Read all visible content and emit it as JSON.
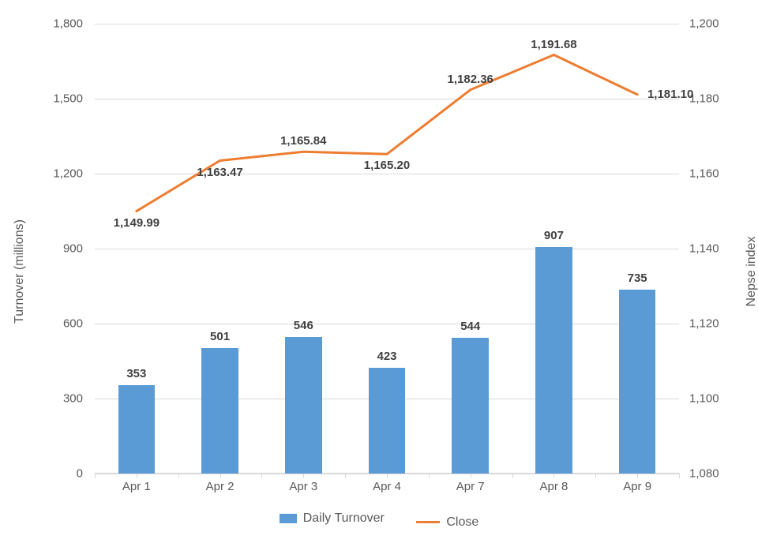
{
  "chart": {
    "type": "bar+line",
    "background_color": "#ffffff",
    "grid_color": "#d9d9d9",
    "text_color": "#595959",
    "label_fontsize": 15,
    "axis_title_fontsize": 16,
    "data_label_fontsize": 15,
    "font_family": "Segoe UI, Arial, sans-serif",
    "categories": [
      "Apr 1",
      "Apr 2",
      "Apr 3",
      "Apr 4",
      "Apr 7",
      "Apr 8",
      "Apr 9"
    ],
    "bar_series": {
      "name": "Daily Turnover",
      "color": "#5b9bd5",
      "values": [
        353,
        501,
        546,
        423,
        544,
        907,
        735
      ],
      "data_labels": [
        "353",
        "501",
        "546",
        "423",
        "544",
        "907",
        "735"
      ],
      "bar_width_ratio": 0.44,
      "data_label_color": "#404040",
      "data_label_weight": "700"
    },
    "line_series": {
      "name": "Close",
      "color": "#ed7d31",
      "line_width": 3,
      "marker_style": "none",
      "values": [
        1149.99,
        1163.47,
        1165.84,
        1165.2,
        1182.36,
        1191.68,
        1181.1
      ],
      "data_labels": [
        "1,149.99",
        "1,163.47",
        "1,165.84",
        "1,165.20",
        "1,182.36",
        "1,191.68",
        "1,181.10"
      ],
      "data_label_color": "#404040",
      "data_label_weight": "700",
      "label_positions": [
        "below",
        "below",
        "above",
        "below",
        "above",
        "above",
        "right"
      ]
    },
    "y_left": {
      "title": "Turnover (millions)",
      "lim": [
        0,
        1800
      ],
      "tick_step": 300,
      "tick_labels": [
        "0",
        "300",
        "600",
        "900",
        "1,200",
        "1,500",
        "1,800"
      ]
    },
    "y_right": {
      "title": "Nepse index",
      "lim": [
        1080,
        1200
      ],
      "tick_step": 20,
      "tick_labels": [
        "1,080",
        "1,100",
        "1,120",
        "1,140",
        "1,160",
        "1,180",
        "1,200"
      ]
    },
    "legend": {
      "items": [
        {
          "type": "bar",
          "label": "Daily Turnover",
          "color": "#5b9bd5"
        },
        {
          "type": "line",
          "label": "Close",
          "color": "#ed7d31"
        }
      ],
      "position": "bottom"
    }
  }
}
